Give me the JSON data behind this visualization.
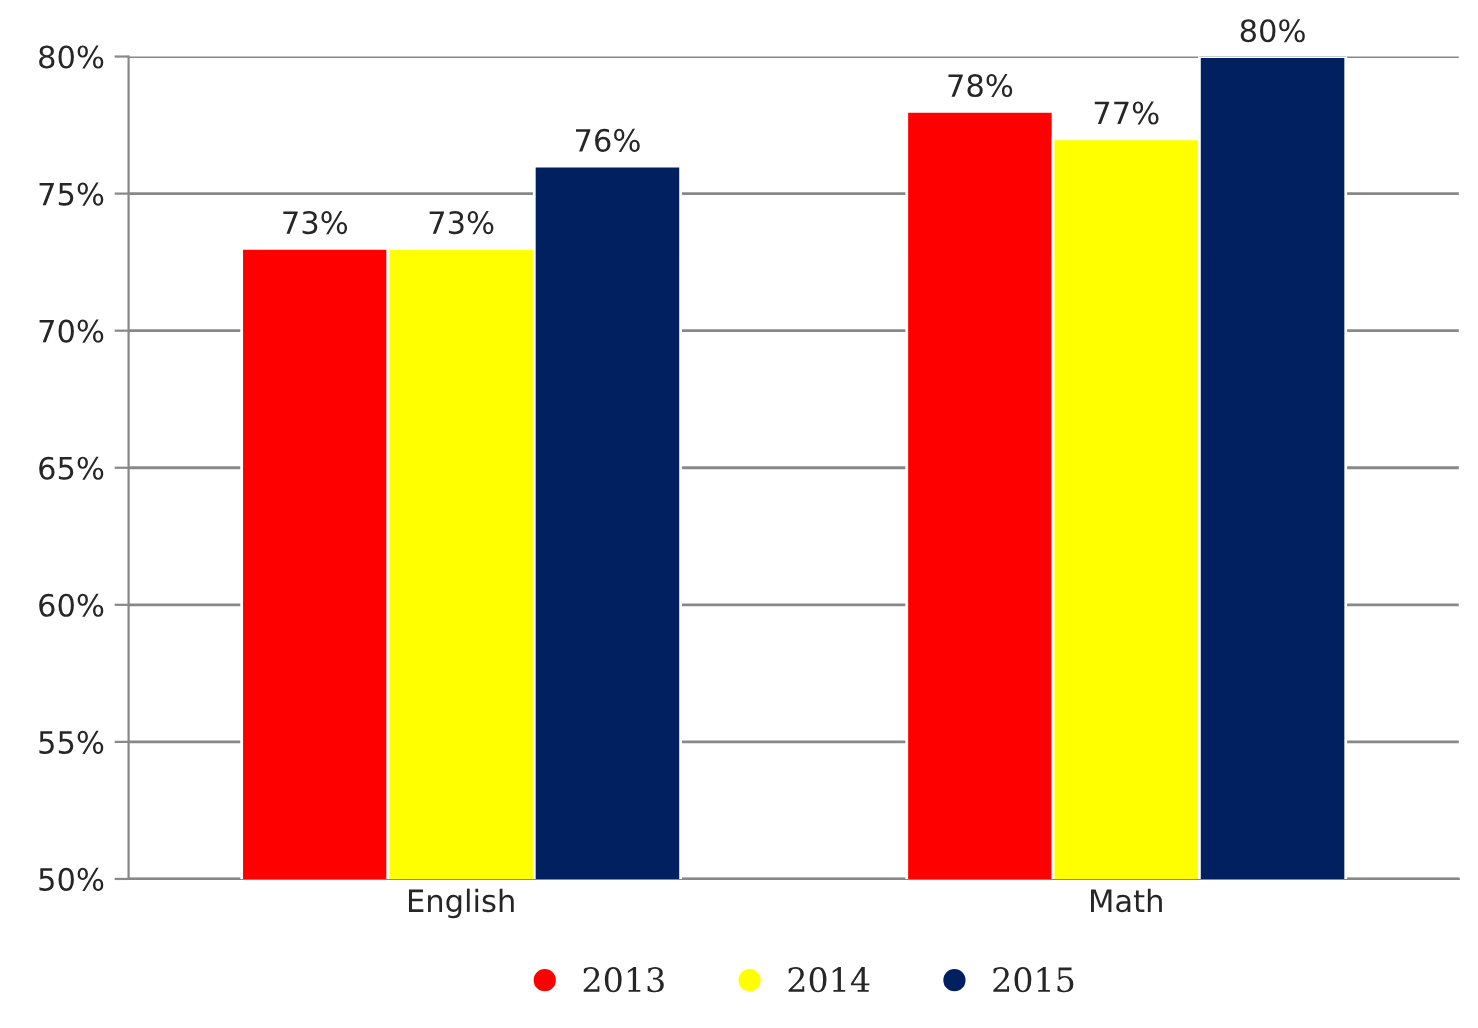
{
  "chart_data": {
    "type": "bar",
    "categories": [
      "English",
      "Math"
    ],
    "series": [
      {
        "name": "2013",
        "color": "#ff0000",
        "values": [
          73,
          78
        ],
        "value_labels": [
          "73%",
          "78%"
        ]
      },
      {
        "name": "2014",
        "color": "#ffff00",
        "values": [
          73,
          77
        ],
        "value_labels": [
          "73%",
          "77%"
        ]
      },
      {
        "name": "2015",
        "color": "#002060",
        "values": [
          76,
          80
        ],
        "value_labels": [
          "76%",
          "80%"
        ]
      }
    ],
    "ylim": [
      50,
      80
    ],
    "yticks": [
      {
        "value": 50,
        "label": "50%"
      },
      {
        "value": 55,
        "label": "55%"
      },
      {
        "value": 60,
        "label": "60%"
      },
      {
        "value": 65,
        "label": "65%"
      },
      {
        "value": 70,
        "label": "70%"
      },
      {
        "value": 75,
        "label": "75%"
      },
      {
        "value": 80,
        "label": "80%"
      }
    ],
    "grid": "y",
    "legend": "bottom"
  }
}
